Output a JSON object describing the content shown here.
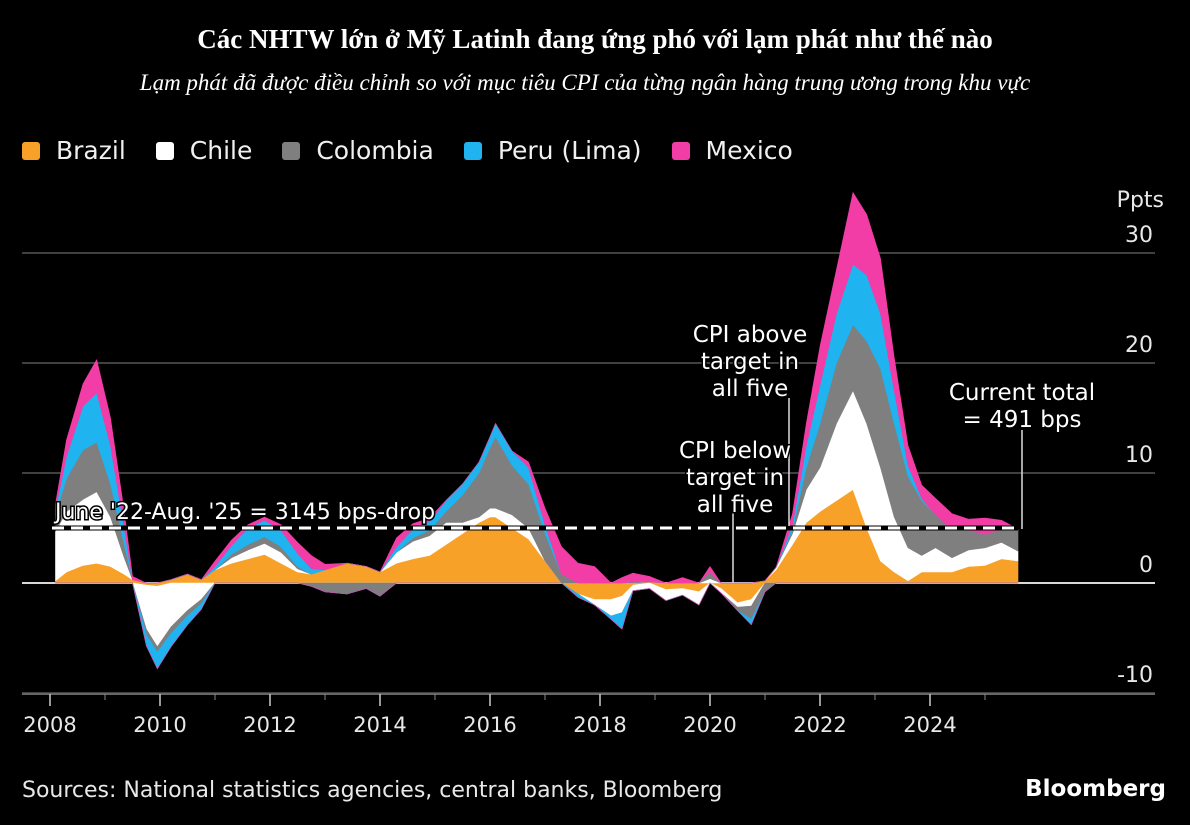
{
  "header": {
    "title": "Các NHTW lớn ở Mỹ Latinh đang ứng phó với lạm phát như thế nào",
    "subtitle": "Lạm phát đã được điều chỉnh so với mục tiêu CPI của từng ngân hàng trung ương trong khu vực"
  },
  "footer": {
    "source": "Sources: National statistics agencies, central banks, Bloomberg",
    "brand": "Bloomberg"
  },
  "chart_data": {
    "type": "area",
    "stacked": true,
    "title": "Các NHTW lớn ở Mỹ Latinh đang ứng phó với lạm phát như thế nào",
    "subtitle": "Lạm phát đã được điều chỉnh so với mục tiêu CPI của từng ngân hàng trung ương trong khu vực",
    "xlabel": "",
    "ylabel": "Ppts",
    "xlim": [
      2007.9,
      2027.3
    ],
    "ylim": [
      -10,
      30
    ],
    "yticks": [
      -10,
      0,
      10,
      20,
      30
    ],
    "ytick_labels": [
      "-10",
      "0",
      "10",
      "20",
      "30"
    ],
    "xticks_major": [
      2008,
      2010,
      2012,
      2014,
      2016,
      2018,
      2020,
      2022,
      2024
    ],
    "xtick_labels": [
      "2008",
      "2010",
      "2012",
      "2014",
      "2016",
      "2018",
      "2020",
      "2022",
      "2024"
    ],
    "xticks_minor": [
      2009,
      2011,
      2013,
      2015,
      2017,
      2019,
      2021,
      2023,
      2025
    ],
    "grid": true,
    "legend_position": "top-left",
    "legend": [
      "Brazil",
      "Chile",
      "Colombia",
      "Peru (Lima)",
      "Mexico"
    ],
    "x": [
      2008.1,
      2008.3,
      2008.6,
      2008.85,
      2009.1,
      2009.35,
      2009.5,
      2009.75,
      2009.95,
      2010.2,
      2010.5,
      2010.75,
      2011.0,
      2011.3,
      2011.6,
      2011.9,
      2012.2,
      2012.5,
      2012.75,
      2013.0,
      2013.4,
      2013.75,
      2014.0,
      2014.3,
      2014.6,
      2014.9,
      2015.2,
      2015.5,
      2015.8,
      2016.0,
      2016.1,
      2016.4,
      2016.7,
      2017.0,
      2017.3,
      2017.6,
      2017.9,
      2018.2,
      2018.4,
      2018.6,
      2018.9,
      2019.2,
      2019.5,
      2019.8,
      2020.0,
      2020.2,
      2020.5,
      2020.75,
      2021.0,
      2021.2,
      2021.5,
      2021.75,
      2022.0,
      2022.3,
      2022.6,
      2022.85,
      2023.1,
      2023.35,
      2023.6,
      2023.85,
      2024.1,
      2024.4,
      2024.7,
      2025.0,
      2025.3,
      2025.6
    ],
    "series": [
      {
        "name": "Brazil",
        "color": "#f7a128",
        "values": [
          0.2,
          1.0,
          1.6,
          1.8,
          1.5,
          0.8,
          0.3,
          -0.2,
          -0.3,
          0.3,
          0.8,
          0.3,
          1.2,
          1.8,
          2.2,
          2.6,
          1.8,
          1.0,
          0.8,
          1.2,
          1.8,
          1.5,
          1.0,
          1.8,
          2.2,
          2.5,
          3.5,
          4.5,
          5.5,
          6.0,
          6.0,
          5.0,
          4.0,
          2.0,
          0.0,
          -1.0,
          -1.5,
          -1.5,
          -1.2,
          -0.2,
          0.1,
          -0.6,
          -0.5,
          -0.8,
          0.0,
          -0.5,
          -1.8,
          -1.5,
          0.2,
          1.2,
          3.5,
          5.5,
          6.5,
          7.5,
          8.5,
          5.0,
          2.0,
          1.0,
          0.2,
          1.0,
          1.0,
          1.0,
          1.5,
          1.6,
          2.2,
          2.0
        ]
      },
      {
        "name": "Chile",
        "color": "#ffffff",
        "values": [
          4.5,
          5.5,
          6.0,
          6.5,
          4.5,
          1.5,
          0.0,
          -4.0,
          -5.5,
          -4.0,
          -2.5,
          -1.5,
          0.0,
          0.5,
          0.8,
          1.0,
          1.0,
          0.3,
          0.0,
          0.0,
          0.0,
          0.0,
          0.0,
          1.0,
          1.6,
          1.8,
          2.0,
          1.0,
          0.5,
          0.8,
          0.8,
          1.2,
          1.0,
          0.0,
          0.0,
          0.0,
          -0.5,
          -1.5,
          -1.5,
          -0.5,
          -0.5,
          -1.0,
          -0.6,
          -1.2,
          0.4,
          -0.4,
          -0.4,
          -0.6,
          0.0,
          0.2,
          1.0,
          3.0,
          4.0,
          7.0,
          9.0,
          9.5,
          8.5,
          5.0,
          3.0,
          1.5,
          2.2,
          1.3,
          1.5,
          1.6,
          1.5,
          0.9
        ]
      },
      {
        "name": "Colombia",
        "color": "#7f7f7f",
        "values": [
          1.5,
          3.0,
          4.5,
          4.5,
          3.0,
          1.2,
          0.0,
          -0.5,
          -0.5,
          -0.6,
          -0.5,
          -0.4,
          0.0,
          0.3,
          0.5,
          0.6,
          0.5,
          0.2,
          -0.3,
          -0.8,
          -1.0,
          -0.5,
          -1.2,
          0.0,
          0.3,
          0.5,
          1.0,
          2.5,
          4.0,
          5.5,
          6.5,
          4.5,
          4.0,
          2.5,
          0.8,
          0.0,
          0.0,
          0.0,
          0.0,
          0.1,
          0.0,
          0.0,
          0.0,
          0.0,
          0.6,
          0.0,
          -0.3,
          -1.2,
          -0.8,
          0.0,
          0.3,
          2.0,
          4.0,
          5.5,
          6.0,
          7.5,
          9.0,
          8.5,
          6.5,
          5.0,
          3.0,
          2.5,
          1.8,
          1.2,
          1.2,
          1.9
        ]
      },
      {
        "name": "Peru (Lima)",
        "color": "#1fb3f0",
        "values": [
          0.5,
          2.0,
          4.0,
          4.5,
          3.5,
          1.5,
          0.0,
          -1.0,
          -1.5,
          -1.2,
          -0.8,
          -0.5,
          0.3,
          0.8,
          1.5,
          1.5,
          1.5,
          1.2,
          0.5,
          0.0,
          0.0,
          0.0,
          0.0,
          0.5,
          0.8,
          0.8,
          1.0,
          1.0,
          1.0,
          1.0,
          1.2,
          1.3,
          1.5,
          0.8,
          0.0,
          -0.3,
          0.0,
          -0.3,
          -1.5,
          0.0,
          0.0,
          0.0,
          0.0,
          0.0,
          0.0,
          0.0,
          0.0,
          -0.5,
          0.0,
          0.0,
          0.5,
          2.0,
          3.5,
          4.5,
          5.5,
          6.0,
          5.0,
          3.0,
          1.0,
          0.2,
          0.0,
          0.0,
          0.0,
          0.0,
          0.0,
          0.0
        ]
      },
      {
        "name": "Mexico",
        "color": "#f23ca6",
        "values": [
          0.5,
          1.5,
          2.0,
          3.0,
          2.5,
          1.5,
          0.3,
          0.0,
          0.0,
          0.0,
          0.0,
          0.0,
          0.5,
          0.5,
          0.3,
          0.3,
          0.5,
          1.0,
          1.2,
          0.5,
          0.0,
          0.0,
          0.0,
          0.8,
          0.5,
          0.3,
          0.0,
          0.0,
          0.0,
          0.0,
          0.0,
          0.0,
          0.5,
          1.5,
          2.5,
          1.8,
          1.5,
          0.0,
          0.5,
          0.8,
          0.5,
          0.0,
          0.5,
          0.0,
          0.5,
          0.0,
          0.0,
          0.0,
          0.0,
          0.0,
          1.0,
          2.0,
          3.5,
          4.0,
          6.5,
          5.5,
          5.0,
          3.0,
          1.8,
          1.2,
          1.5,
          1.5,
          1.0,
          1.5,
          0.8,
          0.1
        ]
      }
    ],
    "reference_line": {
      "value": 5,
      "style": "dashed",
      "label": "June '22-Aug. '25 = 3145 bps-drop"
    },
    "annotations": [
      {
        "text": [
          "CPI above",
          "target in",
          "all five"
        ],
        "x": 2021.4
      },
      {
        "text": [
          "CPI below",
          "target in",
          "all five"
        ],
        "x": 2020.4
      },
      {
        "text": [
          "Current total",
          "= 491 bps"
        ],
        "x": 2025.6,
        "value": 4.91
      }
    ]
  }
}
